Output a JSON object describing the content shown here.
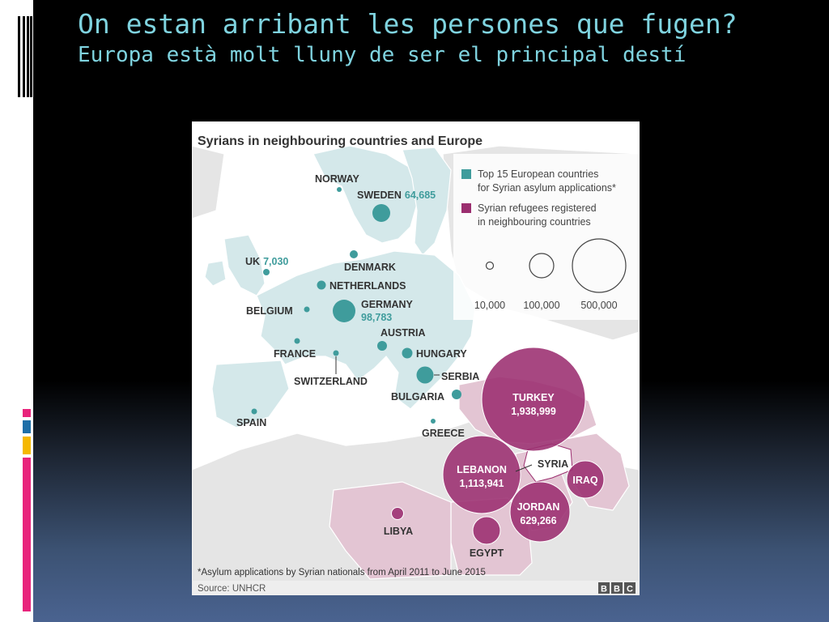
{
  "slide": {
    "title": "On estan arribant les persones que fugen?",
    "subtitle": "Europa està molt lluny de ser el principal destí"
  },
  "colors": {
    "title_text": "#7fd3df",
    "europe_marker": "#3f9c9c",
    "neighbour_marker": "#9b2e6f",
    "eu_land": "#d4e8ea",
    "neighbour_land": "#e3c5d3",
    "other_land": "#e5e5e5",
    "sea": "#ffffff",
    "accent_bars": [
      "#e8247c",
      "#1e6fa8",
      "#f5b800",
      "#e8247c"
    ]
  },
  "map": {
    "title": "Syrians in neighbouring countries and Europe",
    "legend": {
      "europe_label_1": "Top 15 European countries",
      "europe_label_2": "for Syrian asylum applications*",
      "neighbour_label_1": "Syrian refugees registered",
      "neighbour_label_2": "in neighbouring countries",
      "scale": [
        "10,000",
        "100,000",
        "500,000"
      ]
    },
    "europe_countries": [
      {
        "name": "NORWAY",
        "value": ""
      },
      {
        "name": "SWEDEN",
        "value": "64,685"
      },
      {
        "name": "DENMARK",
        "value": ""
      },
      {
        "name": "UK",
        "value": "7,030"
      },
      {
        "name": "NETHERLANDS",
        "value": ""
      },
      {
        "name": "GERMANY",
        "value": "98,783"
      },
      {
        "name": "BELGIUM",
        "value": ""
      },
      {
        "name": "AUSTRIA",
        "value": ""
      },
      {
        "name": "FRANCE",
        "value": ""
      },
      {
        "name": "HUNGARY",
        "value": ""
      },
      {
        "name": "SWITZERLAND",
        "value": ""
      },
      {
        "name": "SERBIA",
        "value": ""
      },
      {
        "name": "BULGARIA",
        "value": ""
      },
      {
        "name": "SPAIN",
        "value": ""
      },
      {
        "name": "GREECE",
        "value": ""
      }
    ],
    "neighbour_countries": [
      {
        "name": "TURKEY",
        "value": "1,938,999"
      },
      {
        "name": "LEBANON",
        "value": "1,113,941"
      },
      {
        "name": "JORDAN",
        "value": "629,266"
      },
      {
        "name": "IRAQ",
        "value": ""
      },
      {
        "name": "EGYPT",
        "value": ""
      },
      {
        "name": "LIBYA",
        "value": ""
      }
    ],
    "syria_label": "SYRIA",
    "footnote": "*Asylum applications by Syrian nationals from April 2011 to June 2015",
    "source": "Source: UNHCR",
    "brand": [
      "B",
      "B",
      "C"
    ]
  }
}
